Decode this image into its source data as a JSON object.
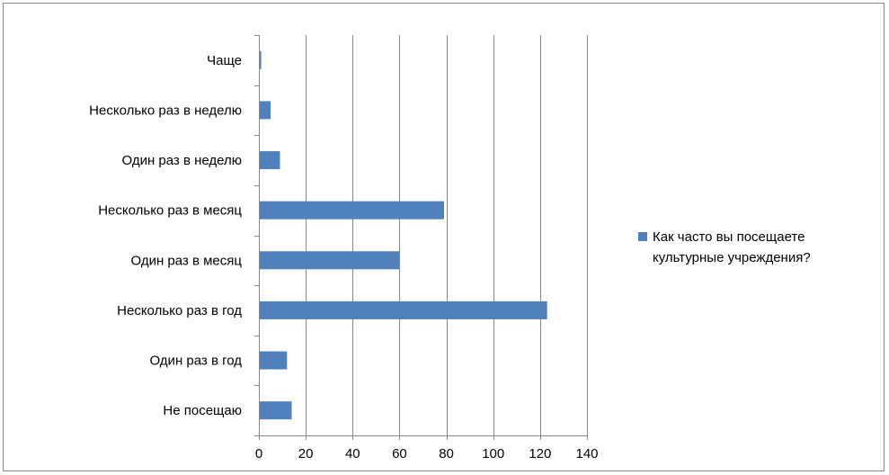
{
  "chart_data": {
    "type": "bar",
    "orientation": "horizontal",
    "categories": [
      "Чаще",
      "Несколько раз в неделю",
      "Один раз в неделю",
      "Несколько раз в месяц",
      "Один раз в месяц",
      "Несколько раз в год",
      "Один раз в год",
      "Не посещаю"
    ],
    "series": [
      {
        "name": "Как часто вы посещаете культурные учреждения?",
        "values": [
          1,
          5,
          9,
          79,
          60,
          123,
          12,
          14
        ],
        "color": "#4f81bd"
      }
    ],
    "xlim": [
      0,
      140
    ],
    "x_ticks": [
      0,
      20,
      40,
      60,
      80,
      100,
      120,
      140
    ],
    "grid": "vertical",
    "legend_position": "right",
    "title": "",
    "xlabel": "",
    "ylabel": ""
  }
}
